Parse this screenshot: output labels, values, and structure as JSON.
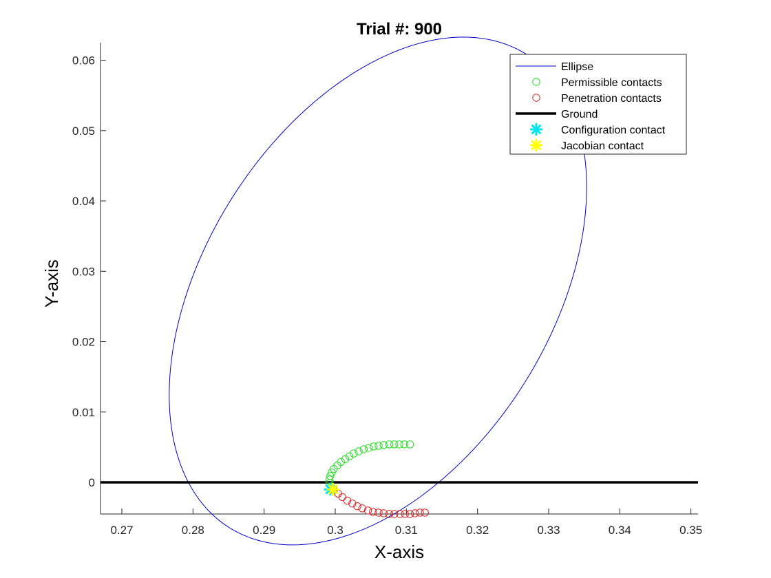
{
  "chart_data": {
    "type": "scatter",
    "title": "Trial #: 900",
    "xlabel": "X-axis",
    "ylabel": "Y-axis",
    "xlim": [
      0.267,
      0.351
    ],
    "ylim": [
      -0.0045,
      0.0625
    ],
    "xticks": [
      0.27,
      0.28,
      0.29,
      0.3,
      0.31,
      0.32,
      0.33,
      0.34,
      0.35
    ],
    "xtick_labels": [
      "0.27",
      "0.28",
      "0.29",
      "0.3",
      "0.31",
      "0.32",
      "0.33",
      "0.34",
      "0.35"
    ],
    "yticks": [
      0,
      0.01,
      0.02,
      0.03,
      0.04,
      0.05,
      0.06
    ],
    "ytick_labels": [
      "0",
      "0.01",
      "0.02",
      "0.03",
      "0.04",
      "0.05",
      "0.06"
    ],
    "grid": false,
    "legend_position": "top-right",
    "ellipse": {
      "name": "Ellipse",
      "color": "#0000cc",
      "center": [
        0.306,
        0.0272
      ],
      "semi_major": 0.0396,
      "semi_minor": 0.0244,
      "angle_deg": 58.5
    },
    "permissible_contacts": {
      "name": "Permissible contacts",
      "color": "#22dd22",
      "points": [
        [
          0.3105,
          0.0054
        ],
        [
          0.3097,
          0.0054
        ],
        [
          0.309,
          0.0054
        ],
        [
          0.3083,
          0.0054
        ],
        [
          0.3076,
          0.0054
        ],
        [
          0.3068,
          0.0053
        ],
        [
          0.3061,
          0.0052
        ],
        [
          0.3054,
          0.0051
        ],
        [
          0.3047,
          0.0049
        ],
        [
          0.304,
          0.0047
        ],
        [
          0.3033,
          0.0044
        ],
        [
          0.3026,
          0.0041
        ],
        [
          0.302,
          0.0037
        ],
        [
          0.3014,
          0.0033
        ],
        [
          0.3008,
          0.0029
        ],
        [
          0.3003,
          0.0024
        ],
        [
          0.2998,
          0.0019
        ],
        [
          0.2995,
          0.0014
        ],
        [
          0.2993,
          0.0009
        ],
        [
          0.2992,
          0.0004
        ],
        [
          0.2992,
          -0.0001
        ],
        [
          0.2994,
          -0.0006
        ]
      ]
    },
    "penetration_contacts": {
      "name": "Penetration contacts",
      "color": "#dd2222",
      "points": [
        [
          0.2998,
          -0.0011
        ],
        [
          0.3004,
          -0.0016
        ],
        [
          0.301,
          -0.0021
        ],
        [
          0.3017,
          -0.0026
        ],
        [
          0.3024,
          -0.003
        ],
        [
          0.3031,
          -0.0034
        ],
        [
          0.3038,
          -0.0037
        ],
        [
          0.3046,
          -0.004
        ],
        [
          0.3053,
          -0.0042
        ],
        [
          0.3061,
          -0.0043
        ],
        [
          0.3068,
          -0.0044
        ],
        [
          0.3076,
          -0.0045
        ],
        [
          0.3083,
          -0.0045
        ],
        [
          0.3091,
          -0.0045
        ],
        [
          0.3098,
          -0.0045
        ],
        [
          0.3105,
          -0.0045
        ],
        [
          0.3112,
          -0.0044
        ],
        [
          0.3119,
          -0.0043
        ],
        [
          0.3126,
          -0.0043
        ]
      ]
    },
    "ground": {
      "name": "Ground",
      "color": "#000000",
      "y": 0
    },
    "configuration_contact": {
      "name": "Configuration contact",
      "color": "#00e5ee",
      "point": [
        0.2993,
        -0.001
      ]
    },
    "jacobian_contact": {
      "name": "Jacobian contact",
      "color": "#ffff00",
      "point": [
        0.2997,
        -0.001
      ]
    },
    "legend": [
      "Ellipse",
      "Permissible contacts",
      "Penetration contacts",
      "Ground",
      "Configuration contact",
      "Jacobian contact"
    ]
  }
}
